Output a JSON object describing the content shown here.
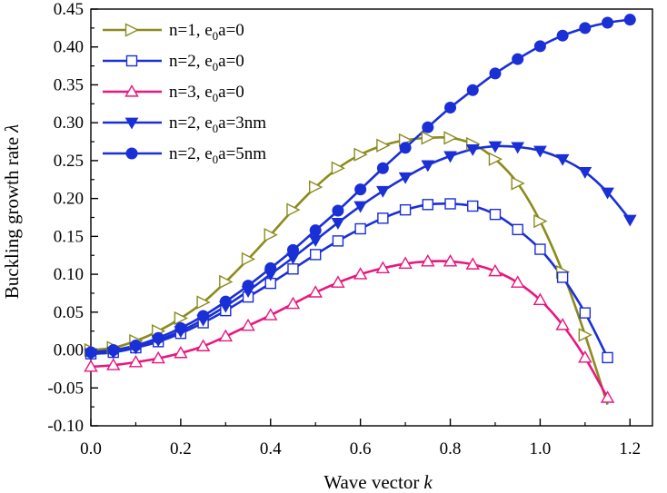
{
  "chart_data": {
    "type": "line",
    "title": "",
    "xlabel": "Wave vector",
    "xlabel_symbol": "k",
    "ylabel": "Buckling growth rate",
    "ylabel_symbol": "λ",
    "xlim": [
      0.0,
      1.25
    ],
    "ylim": [
      -0.1,
      0.45
    ],
    "x_ticks": [
      "0.0",
      "0.2",
      "0.4",
      "0.6",
      "0.8",
      "1.0",
      "1.2"
    ],
    "y_ticks": [
      "-0.10",
      "-0.05",
      "0.00",
      "0.05",
      "0.10",
      "0.15",
      "0.20",
      "0.25",
      "0.30",
      "0.35",
      "0.40",
      "0.45"
    ],
    "grid": false,
    "legend_position": "top-left",
    "series": [
      {
        "name": "n=1, e0a=0",
        "label_main": "n=1, e",
        "label_sub": "0",
        "label_tail": "a=0",
        "color": "#8b8b1e",
        "marker": "triangle-right-open",
        "x": [
          0.0,
          0.05,
          0.1,
          0.15,
          0.2,
          0.25,
          0.3,
          0.35,
          0.4,
          0.45,
          0.5,
          0.55,
          0.6,
          0.65,
          0.7,
          0.75,
          0.8,
          0.85,
          0.9,
          0.95,
          1.0,
          1.05,
          1.1,
          1.15
        ],
        "y": [
          0.0,
          0.003,
          0.012,
          0.025,
          0.042,
          0.063,
          0.09,
          0.12,
          0.152,
          0.185,
          0.215,
          0.24,
          0.258,
          0.27,
          0.277,
          0.28,
          0.28,
          0.272,
          0.252,
          0.22,
          0.17,
          0.103,
          0.02,
          -0.072
        ]
      },
      {
        "name": "n=2, e0a=0",
        "label_main": "n=2, e",
        "label_sub": "0",
        "label_tail": "a=0",
        "color": "#1a2fd6",
        "marker": "square-open",
        "x": [
          0.0,
          0.05,
          0.1,
          0.15,
          0.2,
          0.25,
          0.3,
          0.35,
          0.4,
          0.45,
          0.5,
          0.55,
          0.6,
          0.65,
          0.7,
          0.75,
          0.8,
          0.85,
          0.9,
          0.95,
          1.0,
          1.05,
          1.1,
          1.15
        ],
        "y": [
          -0.005,
          -0.003,
          0.003,
          0.011,
          0.022,
          0.036,
          0.052,
          0.07,
          0.088,
          0.107,
          0.126,
          0.144,
          0.16,
          0.174,
          0.185,
          0.192,
          0.193,
          0.19,
          0.179,
          0.159,
          0.133,
          0.096,
          0.049,
          -0.01
        ]
      },
      {
        "name": "n=3, e0a=0",
        "label_main": "n=3, e",
        "label_sub": "0",
        "label_tail": "a=0",
        "color": "#e8167e",
        "marker": "triangle-up-open",
        "x": [
          0.0,
          0.05,
          0.1,
          0.15,
          0.2,
          0.25,
          0.3,
          0.35,
          0.4,
          0.45,
          0.5,
          0.55,
          0.6,
          0.65,
          0.7,
          0.75,
          0.8,
          0.85,
          0.9,
          0.95,
          1.0,
          1.05,
          1.1,
          1.15
        ],
        "y": [
          -0.022,
          -0.02,
          -0.016,
          -0.011,
          -0.004,
          0.005,
          0.018,
          0.032,
          0.046,
          0.061,
          0.076,
          0.089,
          0.1,
          0.108,
          0.114,
          0.117,
          0.117,
          0.113,
          0.104,
          0.089,
          0.066,
          0.033,
          -0.01,
          -0.063
        ]
      },
      {
        "name": "n=2, e0a=3nm",
        "label_main": "n=2, e",
        "label_sub": "0",
        "label_tail": "a=3nm",
        "color": "#1a2fd6",
        "marker": "triangle-down-filled",
        "x": [
          0.0,
          0.05,
          0.1,
          0.15,
          0.2,
          0.25,
          0.3,
          0.35,
          0.4,
          0.45,
          0.5,
          0.55,
          0.6,
          0.65,
          0.7,
          0.75,
          0.8,
          0.85,
          0.9,
          0.95,
          1.0,
          1.05,
          1.1,
          1.15,
          1.2
        ],
        "y": [
          -0.005,
          -0.003,
          0.003,
          0.013,
          0.025,
          0.04,
          0.058,
          0.078,
          0.1,
          0.122,
          0.145,
          0.168,
          0.19,
          0.21,
          0.228,
          0.244,
          0.256,
          0.265,
          0.269,
          0.268,
          0.263,
          0.252,
          0.235,
          0.208,
          0.172
        ]
      },
      {
        "name": "n=2, e0a=5nm",
        "label_main": "n=2, e",
        "label_sub": "0",
        "label_tail": "a=5nm",
        "color": "#1a2fd6",
        "marker": "circle-filled",
        "x": [
          0.0,
          0.05,
          0.1,
          0.15,
          0.2,
          0.25,
          0.3,
          0.35,
          0.4,
          0.45,
          0.5,
          0.55,
          0.6,
          0.65,
          0.7,
          0.75,
          0.8,
          0.85,
          0.9,
          0.95,
          1.0,
          1.05,
          1.1,
          1.15,
          1.2
        ],
        "y": [
          -0.003,
          0.0,
          0.006,
          0.016,
          0.029,
          0.045,
          0.064,
          0.085,
          0.108,
          0.132,
          0.158,
          0.184,
          0.212,
          0.24,
          0.267,
          0.294,
          0.32,
          0.343,
          0.365,
          0.384,
          0.401,
          0.415,
          0.425,
          0.432,
          0.436
        ]
      }
    ]
  }
}
